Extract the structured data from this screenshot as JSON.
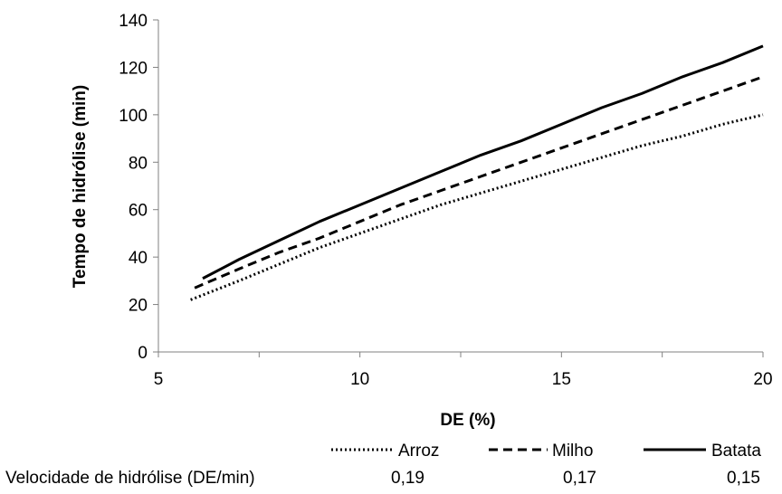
{
  "chart_data": {
    "type": "line",
    "title": "",
    "xlabel": "DE (%)",
    "ylabel": "Tempo de  hidrólise (min)",
    "xlim": [
      5,
      20
    ],
    "ylim": [
      0,
      140
    ],
    "xticks": [
      5,
      10,
      15,
      20
    ],
    "yticks": [
      0,
      20,
      40,
      60,
      80,
      100,
      120,
      140
    ],
    "grid": false,
    "legend_position": "bottom",
    "series": [
      {
        "name": "Arroz",
        "style": "dotted",
        "color": "#000000",
        "x": [
          5.8,
          7,
          8,
          9,
          10,
          11,
          12,
          13,
          14,
          15,
          16,
          17,
          18,
          19,
          20
        ],
        "y": [
          22,
          30,
          37,
          44,
          50,
          56,
          62,
          67,
          72,
          77,
          82,
          87,
          91,
          96,
          100
        ]
      },
      {
        "name": "Milho",
        "style": "dashed",
        "color": "#000000",
        "x": [
          5.9,
          7,
          8,
          9,
          10,
          11,
          12,
          13,
          14,
          15,
          16,
          17,
          18,
          19,
          20
        ],
        "y": [
          27,
          35,
          42,
          48,
          55,
          62,
          68,
          74,
          80,
          86,
          92,
          98,
          104,
          110,
          116
        ]
      },
      {
        "name": "Batata",
        "style": "solid",
        "color": "#000000",
        "x": [
          6.1,
          7,
          8,
          9,
          10,
          11,
          12,
          13,
          14,
          15,
          16,
          17,
          18,
          19,
          20
        ],
        "y": [
          31,
          39,
          47,
          55,
          62,
          69,
          76,
          83,
          89,
          96,
          103,
          109,
          116,
          122,
          129
        ]
      }
    ],
    "rates": {
      "label": "Velocidade  de hidrólise  (DE/min)",
      "values": [
        "0,19",
        "0,17",
        "0,15"
      ]
    }
  }
}
